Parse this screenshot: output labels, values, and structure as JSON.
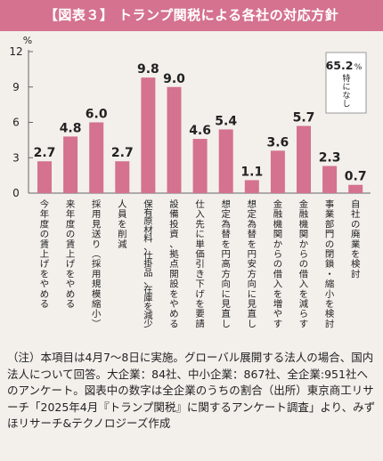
{
  "header": {
    "title": "【図表３】 トランプ関税による各社の対応方針"
  },
  "chart_data": {
    "type": "bar",
    "ylabel": "%",
    "ylim": [
      0,
      12
    ],
    "yticks": [
      0,
      3,
      6,
      9,
      12
    ],
    "grid": false,
    "bar_color": "#d4728f",
    "categories": [
      "今年度の賃上げをやめる",
      "来年度の賃上げをやめる",
      "採用見送り（採用規模縮小）",
      "人員を削減",
      "保有原材料、仕掛品、在庫を減少",
      "設備投資、拠点開設をやめる",
      "仕入先に単価引き下げを要請",
      "想定為替を円高方向に見直し",
      "想定為替を円安方向に見直し",
      "金融機関からの借入を増やす",
      "金融機関からの借入を減らす",
      "事業部門の閉鎖・縮小を検討",
      "自社の廃業を検討"
    ],
    "values": [
      2.7,
      4.8,
      6.0,
      2.7,
      9.8,
      9.0,
      4.6,
      5.4,
      1.1,
      3.6,
      5.7,
      2.3,
      0.7
    ],
    "value_labels": [
      "2.7",
      "4.8",
      "6.0",
      "2.7",
      "9.8",
      "9.0",
      "4.6",
      "5.4",
      "1.1",
      "3.6",
      "5.7",
      "2.3",
      "0.7"
    ],
    "annotation": {
      "value_text": "65.2",
      "unit_text": "%",
      "caption": "特になし"
    }
  },
  "note": "（注）本項目は4月7〜8日に実施。グローバル展開する法人の場合、国内法人について回答。大企業：84社、中小企業：867社、全企業:951社へのアンケート。図表中の数字は全企業のうちの割合（出所）東京商工リサーチ「2025年4月『トランプ関税』に関するアンケート調査」より、みずほリサーチ&テクノロジーズ作成"
}
